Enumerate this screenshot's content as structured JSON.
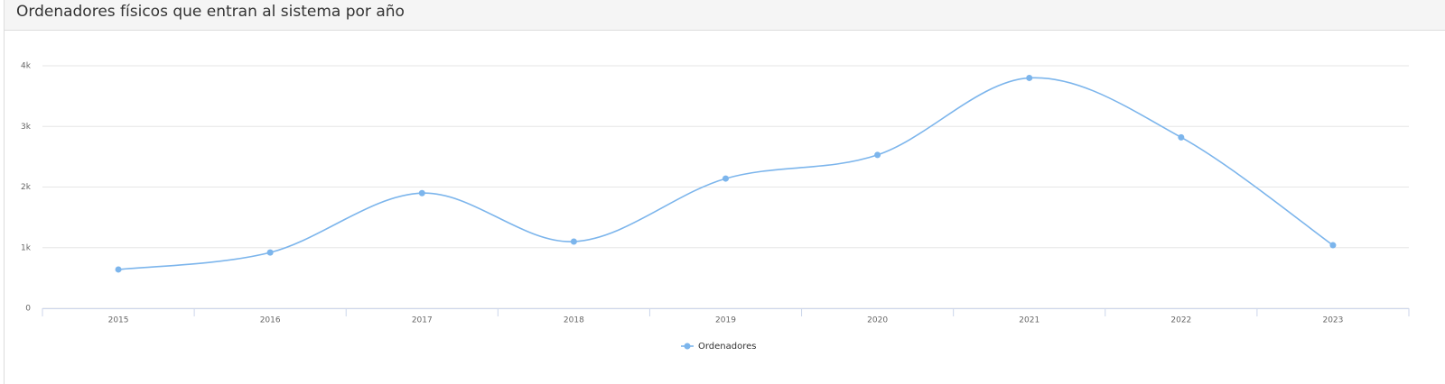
{
  "chart_data": {
    "type": "line",
    "title": "Ordenadores físicos que entran al sistema por año",
    "categories": [
      "2015",
      "2016",
      "2017",
      "2018",
      "2019",
      "2020",
      "2021",
      "2022",
      "2023"
    ],
    "series": [
      {
        "name": "Ordenadores",
        "color": "#7cb5ec",
        "values": [
          640,
          920,
          1900,
          1100,
          2140,
          2530,
          3800,
          2820,
          1040
        ]
      }
    ],
    "ylim": [
      0,
      4000
    ],
    "yticks": [
      0,
      {
        "value": 1000,
        "label": "1k"
      },
      {
        "value": 2000,
        "label": "2k"
      },
      {
        "value": 3000,
        "label": "3k"
      },
      {
        "value": 4000,
        "label": "4k"
      }
    ],
    "grid": true,
    "legend": "bottom"
  }
}
